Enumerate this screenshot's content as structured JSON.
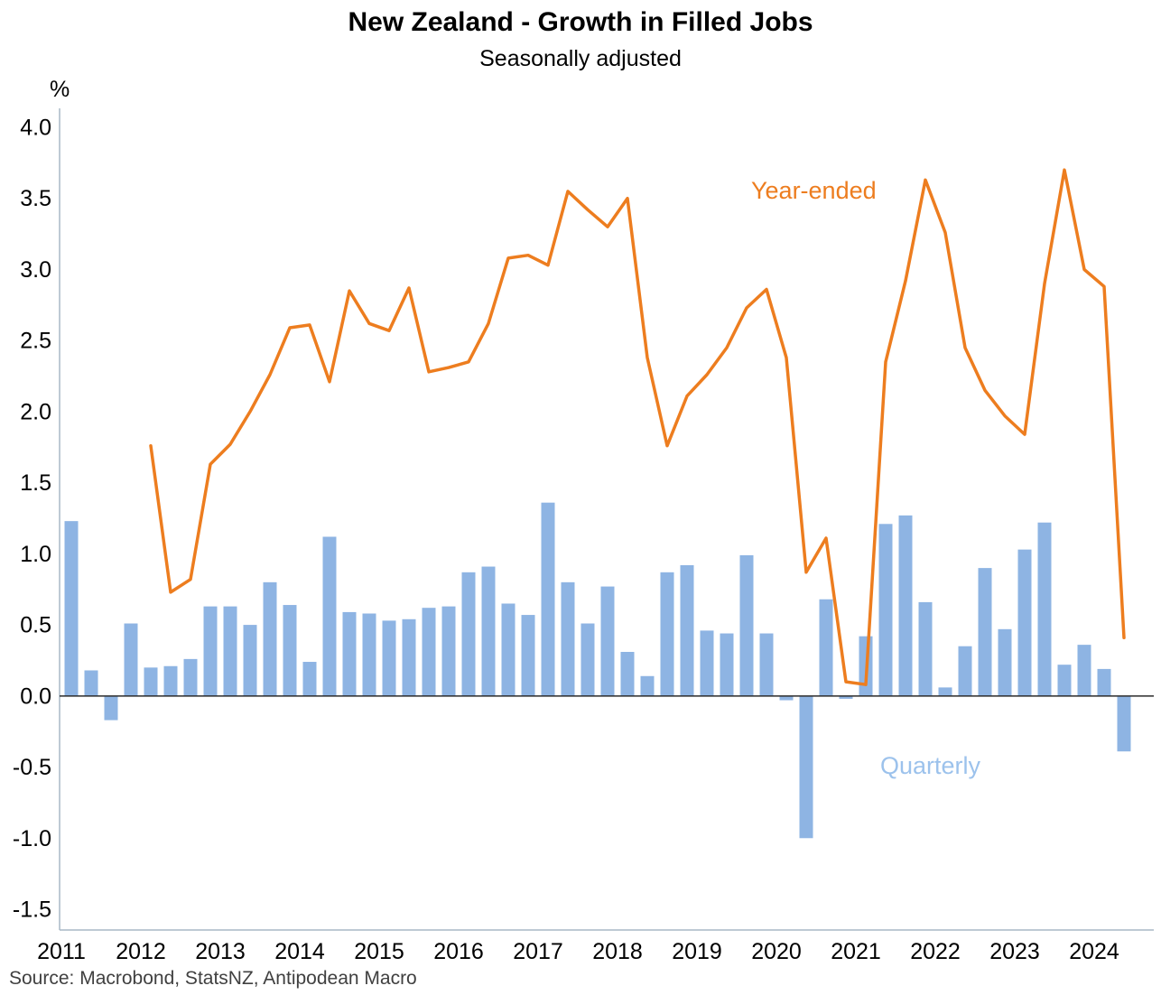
{
  "source": "Source: Macrobond, StatsNZ, Antipodean Macro",
  "colors": {
    "bar": "#8eb4e3",
    "bar_label": "#9cc2ec",
    "line": "#ed7d1f",
    "axis": "#a9b8c6",
    "zero_line": "#2b2b2b",
    "text": "#000000",
    "source_text": "#404040"
  },
  "chart_data": {
    "type": "bar+line",
    "title": "New Zealand - Growth in Filled Jobs",
    "subtitle": "Seasonally adjusted",
    "ylabel": "%",
    "xlabel": "",
    "ylim": [
      -1.5,
      4.0
    ],
    "ytick_step": 0.5,
    "grid": false,
    "legend": "inline-labels",
    "y_tick_labels": [
      "4.0",
      "3.5",
      "3.0",
      "2.5",
      "2.0",
      "1.5",
      "1.0",
      "0.5",
      "0.0",
      "-0.5",
      "-1.0",
      "-1.5"
    ],
    "x_tick_labels": [
      "2011",
      "2012",
      "2013",
      "2014",
      "2015",
      "2016",
      "2017",
      "2018",
      "2019",
      "2020",
      "2021",
      "2022",
      "2023",
      "2024"
    ],
    "categories": [
      "2011 Q1",
      "2011 Q2",
      "2011 Q3",
      "2011 Q4",
      "2012 Q1",
      "2012 Q2",
      "2012 Q3",
      "2012 Q4",
      "2013 Q1",
      "2013 Q2",
      "2013 Q3",
      "2013 Q4",
      "2014 Q1",
      "2014 Q2",
      "2014 Q3",
      "2014 Q4",
      "2015 Q1",
      "2015 Q2",
      "2015 Q3",
      "2015 Q4",
      "2016 Q1",
      "2016 Q2",
      "2016 Q3",
      "2016 Q4",
      "2017 Q1",
      "2017 Q2",
      "2017 Q3",
      "2017 Q4",
      "2018 Q1",
      "2018 Q2",
      "2018 Q3",
      "2018 Q4",
      "2019 Q1",
      "2019 Q2",
      "2019 Q3",
      "2019 Q4",
      "2020 Q1",
      "2020 Q2",
      "2020 Q3",
      "2020 Q4",
      "2021 Q1",
      "2021 Q2",
      "2021 Q3",
      "2021 Q4",
      "2022 Q1",
      "2022 Q2",
      "2022 Q3",
      "2022 Q4",
      "2023 Q1",
      "2023 Q2",
      "2023 Q3",
      "2023 Q4",
      "2024 Q1",
      "2024 Q2"
    ],
    "series": [
      {
        "name": "Quarterly",
        "type": "bar",
        "color_key": "bar",
        "values": [
          1.23,
          0.18,
          -0.17,
          0.51,
          0.2,
          0.21,
          0.26,
          0.63,
          0.63,
          0.5,
          0.8,
          0.64,
          0.24,
          1.12,
          0.59,
          0.58,
          0.53,
          0.54,
          0.62,
          0.63,
          0.87,
          0.91,
          0.65,
          0.57,
          1.36,
          0.8,
          0.51,
          0.77,
          0.31,
          0.14,
          0.87,
          0.92,
          0.46,
          0.44,
          0.99,
          0.44,
          -0.03,
          -1.0,
          0.68,
          -0.02,
          0.42,
          1.21,
          1.27,
          0.66,
          0.06,
          0.35,
          0.9,
          0.47,
          1.03,
          1.22,
          0.22,
          0.36,
          0.19,
          -0.39
        ]
      },
      {
        "name": "Year-ended",
        "type": "line",
        "color_key": "line",
        "values": [
          null,
          null,
          null,
          null,
          1.76,
          0.73,
          0.82,
          1.63,
          1.77,
          2.0,
          2.26,
          2.59,
          2.61,
          2.21,
          2.85,
          2.62,
          2.57,
          2.87,
          2.28,
          2.31,
          2.35,
          2.62,
          3.08,
          3.1,
          3.03,
          3.55,
          3.42,
          3.3,
          3.5,
          2.38,
          1.76,
          2.11,
          2.26,
          2.45,
          2.73,
          2.86,
          2.38,
          0.87,
          1.11,
          0.1,
          0.08,
          2.35,
          2.92,
          3.63,
          3.26,
          2.45,
          2.15,
          1.97,
          1.84,
          2.9,
          3.7,
          3.0,
          2.88,
          0.41
        ]
      }
    ]
  }
}
